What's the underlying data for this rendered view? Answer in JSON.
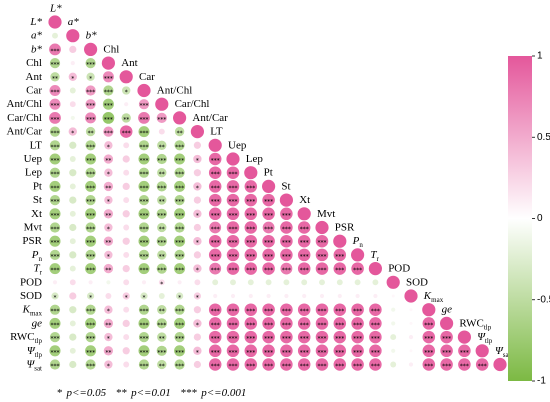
{
  "chart_data": {
    "type": "correlation",
    "variables": [
      {
        "text": "L*",
        "italic": true
      },
      {
        "text": "a*",
        "italic": true
      },
      {
        "text": "b*",
        "italic": true
      },
      {
        "text": "Chl"
      },
      {
        "text": "Ant"
      },
      {
        "text": "Car"
      },
      {
        "text": "Ant/Chl"
      },
      {
        "text": "Car/Chl"
      },
      {
        "text": "Ant/Car"
      },
      {
        "text": "LT"
      },
      {
        "text": "Uep"
      },
      {
        "text": "Lep"
      },
      {
        "text": "Pt"
      },
      {
        "text": "St"
      },
      {
        "text": "Xt"
      },
      {
        "text": "Mvt"
      },
      {
        "text": "PSR"
      },
      {
        "text": "P",
        "sub": "n",
        "italic": true
      },
      {
        "text": "T",
        "sub": "r",
        "italic": true
      },
      {
        "text": "POD"
      },
      {
        "text": "SOD"
      },
      {
        "text": "K",
        "sub": "max",
        "italic": true
      },
      {
        "text": "ge",
        "italic": true
      },
      {
        "text": "RWC",
        "sub": "tlp"
      },
      {
        "text": "Ψ",
        "sub": "tlp",
        "italic": true
      },
      {
        "text": "Ψ",
        "sub": "sat",
        "italic": true
      }
    ],
    "values": [
      [
        1
      ],
      [
        -0.2,
        1
      ],
      [
        0.8,
        0.3,
        1
      ],
      [
        -0.6,
        0.1,
        -0.6,
        1
      ],
      [
        -0.5,
        0.4,
        -0.4,
        0.7,
        1
      ],
      [
        0.7,
        -0.2,
        0.6,
        -0.6,
        -0.4,
        1
      ],
      [
        0.7,
        0.2,
        0.6,
        -0.7,
        0.1,
        0.6,
        1
      ],
      [
        0.8,
        -0.1,
        0.7,
        -0.8,
        -0.5,
        0.8,
        0.6,
        1
      ],
      [
        -0.6,
        0.4,
        -0.5,
        0.6,
        0.9,
        -0.7,
        0.2,
        -0.5,
        1
      ],
      [
        -0.6,
        -0.3,
        -0.6,
        0.4,
        0.2,
        -0.6,
        -0.5,
        -0.6,
        0.3,
        1
      ],
      [
        -0.7,
        -0.2,
        -0.7,
        0.5,
        0.3,
        -0.7,
        -0.6,
        -0.7,
        0.4,
        0.9,
        1
      ],
      [
        -0.6,
        -0.3,
        -0.6,
        0.4,
        0.2,
        -0.6,
        -0.5,
        -0.6,
        0.3,
        0.9,
        0.9,
        1
      ],
      [
        -0.7,
        -0.2,
        -0.7,
        0.5,
        0.3,
        -0.7,
        -0.6,
        -0.7,
        0.4,
        0.9,
        0.9,
        0.9,
        1
      ],
      [
        -0.6,
        -0.3,
        -0.6,
        0.4,
        0.2,
        -0.6,
        -0.5,
        -0.6,
        0.3,
        0.9,
        0.9,
        0.9,
        0.9,
        1
      ],
      [
        -0.7,
        -0.2,
        -0.7,
        0.5,
        0.3,
        -0.7,
        -0.6,
        -0.7,
        0.4,
        0.9,
        0.9,
        0.9,
        0.9,
        0.9,
        1
      ],
      [
        -0.6,
        -0.3,
        -0.6,
        0.4,
        0.2,
        -0.6,
        -0.5,
        -0.6,
        0.3,
        0.8,
        0.9,
        0.9,
        0.8,
        0.9,
        0.9,
        1
      ],
      [
        -0.7,
        -0.2,
        -0.7,
        0.5,
        0.3,
        -0.7,
        -0.6,
        -0.7,
        0.4,
        0.9,
        0.9,
        0.9,
        0.9,
        0.9,
        0.9,
        0.9,
        1
      ],
      [
        -0.6,
        -0.3,
        -0.6,
        0.4,
        0.2,
        -0.6,
        -0.5,
        -0.6,
        0.3,
        0.9,
        0.9,
        0.9,
        0.9,
        0.9,
        0.9,
        0.9,
        0.9,
        1
      ],
      [
        -0.7,
        -0.2,
        -0.7,
        0.5,
        0.3,
        -0.7,
        -0.6,
        -0.7,
        0.4,
        0.8,
        0.9,
        0.9,
        0.9,
        0.8,
        0.9,
        0.9,
        0.9,
        0.9,
        1
      ],
      [
        0.1,
        0.2,
        0.1,
        -0.1,
        0.2,
        0.1,
        0.2,
        0.1,
        0.2,
        -0.2,
        -0.2,
        -0.2,
        -0.2,
        -0.2,
        -0.2,
        -0.2,
        -0.2,
        -0.2,
        -0.2,
        1
      ],
      [
        -0.3,
        0.3,
        -0.3,
        0.2,
        0.3,
        -0.3,
        -0.2,
        -0.3,
        0.3,
        0.1,
        0.1,
        0.1,
        0.1,
        0.1,
        0.1,
        0.1,
        0.1,
        0.1,
        0.1,
        0.05,
        1
      ],
      [
        -0.6,
        -0.3,
        -0.6,
        0.4,
        0.2,
        -0.6,
        -0.5,
        -0.6,
        0.3,
        0.9,
        0.9,
        0.9,
        0.9,
        0.9,
        0.9,
        0.9,
        0.9,
        0.9,
        0.9,
        -0.1,
        0.05,
        1
      ],
      [
        -0.7,
        -0.2,
        -0.7,
        0.5,
        0.3,
        -0.7,
        -0.6,
        -0.7,
        0.4,
        0.9,
        0.9,
        0.9,
        0.9,
        0.9,
        0.9,
        0.9,
        0.9,
        0.9,
        0.9,
        -0.1,
        0.05,
        0.9,
        1
      ],
      [
        -0.6,
        -0.3,
        -0.6,
        0.4,
        0.2,
        -0.6,
        -0.5,
        -0.6,
        0.3,
        0.9,
        0.9,
        0.9,
        0.9,
        0.9,
        0.9,
        0.9,
        0.9,
        0.9,
        0.9,
        -0.2,
        0.1,
        0.9,
        0.9,
        1
      ],
      [
        -0.7,
        -0.2,
        -0.7,
        0.5,
        0.3,
        -0.7,
        -0.6,
        -0.7,
        0.4,
        0.9,
        0.9,
        0.9,
        0.9,
        0.9,
        0.9,
        0.9,
        0.9,
        0.9,
        0.9,
        -0.1,
        0.05,
        0.9,
        0.9,
        0.9,
        1
      ],
      [
        -0.6,
        -0.3,
        -0.6,
        0.4,
        0.2,
        -0.6,
        -0.5,
        -0.6,
        0.3,
        0.9,
        0.9,
        0.9,
        0.9,
        0.9,
        0.9,
        0.9,
        0.9,
        0.9,
        0.9,
        -0.2,
        0.1,
        0.9,
        0.9,
        0.9,
        0.9,
        1
      ]
    ],
    "significance_levels": [
      [
        0
      ],
      [
        0,
        0
      ],
      [
        3,
        0,
        0
      ],
      [
        3,
        0,
        3,
        0
      ],
      [
        2,
        1,
        1,
        3,
        0
      ],
      [
        3,
        0,
        3,
        3,
        1,
        0
      ],
      [
        3,
        0,
        3,
        3,
        0,
        3,
        0
      ],
      [
        3,
        0,
        3,
        3,
        2,
        3,
        3,
        0
      ],
      [
        3,
        1,
        2,
        3,
        3,
        3,
        0,
        2,
        0
      ],
      [
        3,
        0,
        3,
        1,
        0,
        3,
        2,
        3,
        0,
        0
      ],
      [
        3,
        0,
        3,
        2,
        0,
        3,
        3,
        3,
        1,
        3,
        0
      ],
      [
        3,
        0,
        3,
        1,
        0,
        3,
        2,
        3,
        0,
        3,
        3,
        0
      ],
      [
        3,
        0,
        3,
        2,
        0,
        3,
        3,
        3,
        1,
        3,
        3,
        3,
        0
      ],
      [
        3,
        0,
        3,
        1,
        0,
        3,
        2,
        3,
        0,
        3,
        3,
        3,
        3,
        0
      ],
      [
        3,
        0,
        3,
        2,
        0,
        3,
        3,
        3,
        1,
        3,
        3,
        3,
        3,
        3,
        0
      ],
      [
        3,
        0,
        3,
        1,
        0,
        3,
        2,
        3,
        0,
        3,
        3,
        3,
        3,
        3,
        3,
        0
      ],
      [
        3,
        0,
        3,
        2,
        0,
        3,
        3,
        3,
        1,
        3,
        3,
        3,
        3,
        3,
        3,
        3,
        0
      ],
      [
        3,
        0,
        3,
        1,
        0,
        3,
        2,
        3,
        0,
        3,
        3,
        3,
        3,
        3,
        3,
        3,
        3,
        0
      ],
      [
        3,
        0,
        3,
        2,
        0,
        3,
        3,
        3,
        1,
        3,
        3,
        3,
        3,
        3,
        3,
        3,
        3,
        3,
        0
      ],
      [
        0,
        0,
        0,
        0,
        0,
        0,
        1,
        0,
        0,
        0,
        0,
        0,
        0,
        0,
        0,
        0,
        0,
        0,
        0,
        0
      ],
      [
        1,
        0,
        1,
        0,
        1,
        1,
        0,
        1,
        1,
        0,
        0,
        0,
        0,
        0,
        0,
        0,
        0,
        0,
        0,
        0,
        0
      ],
      [
        3,
        0,
        3,
        1,
        0,
        3,
        2,
        3,
        0,
        3,
        3,
        3,
        3,
        3,
        3,
        3,
        3,
        3,
        3,
        0,
        0,
        0
      ],
      [
        3,
        0,
        3,
        2,
        0,
        3,
        3,
        3,
        1,
        3,
        3,
        3,
        3,
        3,
        3,
        3,
        3,
        3,
        3,
        0,
        0,
        3,
        0
      ],
      [
        3,
        0,
        3,
        1,
        0,
        3,
        2,
        3,
        0,
        3,
        3,
        3,
        3,
        3,
        3,
        3,
        3,
        3,
        3,
        0,
        0,
        3,
        3,
        0
      ],
      [
        3,
        0,
        3,
        2,
        0,
        3,
        3,
        3,
        1,
        3,
        3,
        3,
        3,
        3,
        3,
        3,
        3,
        3,
        3,
        0,
        0,
        3,
        3,
        3,
        0
      ],
      [
        3,
        0,
        3,
        1,
        0,
        3,
        2,
        3,
        0,
        3,
        3,
        3,
        3,
        3,
        3,
        3,
        3,
        3,
        3,
        0,
        0,
        3,
        3,
        3,
        3,
        0
      ]
    ],
    "significance": [
      {
        "stars": "*",
        "label": "p<=0.05"
      },
      {
        "stars": "**",
        "label": "p<=0.01"
      },
      {
        "stars": "***",
        "label": "p<=0.001"
      }
    ],
    "colors": {
      "negative": "#7cb943",
      "zero": "#ffffff",
      "positive": "#e4579b"
    },
    "clim": [
      -1,
      1
    ],
    "cticks": [
      -1,
      -0.5,
      0,
      0.5,
      1
    ]
  }
}
